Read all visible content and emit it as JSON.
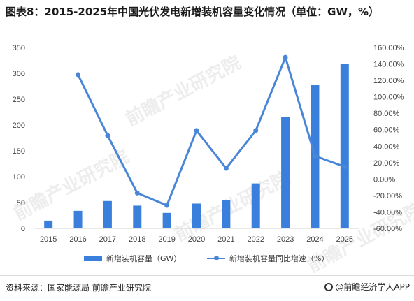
{
  "title": "图表8：2015-2025年中国光伏发电新增装机容量变化情况（单位：GW，%）",
  "source": "资料来源：国家能源局  前瞻产业研究院",
  "brand": "@前瞻经济学人APP",
  "watermark_text": "前瞻产业研究院",
  "colors": {
    "bar": "#3a7fdb",
    "line": "#4a86d8"
  },
  "chart_data": {
    "type": "bar+line",
    "categories": [
      "2015",
      "2016",
      "2017",
      "2018",
      "2019",
      "2020",
      "2021",
      "2022",
      "2023",
      "2024",
      "2025"
    ],
    "series": [
      {
        "name": "新增装机容量（GW）",
        "type": "bar",
        "axis": "left",
        "values": [
          15,
          34,
          53,
          44,
          30,
          48,
          55,
          87,
          216,
          278,
          318
        ]
      },
      {
        "name": "新增装机容量同比增速（%）",
        "type": "line",
        "axis": "right",
        "values": [
          null,
          127,
          53,
          -17,
          -32,
          59,
          13,
          59,
          148,
          28,
          15
        ]
      }
    ],
    "y_left": {
      "min": 0,
      "max": 350,
      "ticks": [
        "0",
        "50",
        "100",
        "150",
        "200",
        "250",
        "300",
        "350"
      ]
    },
    "y_right": {
      "min": -60,
      "max": 160,
      "ticks": [
        "-60.00%",
        "-40.00%",
        "-20.00%",
        "0.00%",
        "20.00%",
        "40.00%",
        "60.00%",
        "80.00%",
        "100.00%",
        "120.00%",
        "140.00%",
        "160.00%"
      ]
    },
    "grid": false,
    "legend_position": "bottom"
  }
}
